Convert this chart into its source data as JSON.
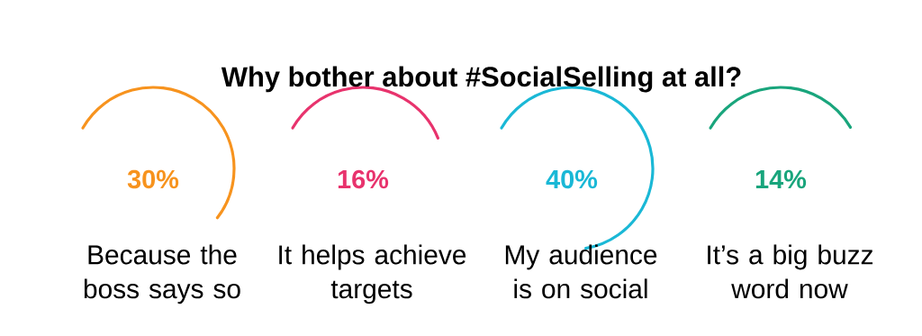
{
  "chart_data": {
    "type": "other",
    "title": "Why bother about #SocialSelling at all?",
    "categories": [
      "Because the boss says so",
      "It helps achieve targets",
      "My audience is on social",
      "It’s a big buzz word now"
    ],
    "values": [
      30,
      16,
      40,
      14
    ],
    "value_labels": [
      "30%",
      "16%",
      "40%",
      "14%"
    ],
    "colors": [
      "#f7931e",
      "#e8336d",
      "#1ab8d6",
      "#19a57c"
    ]
  }
}
